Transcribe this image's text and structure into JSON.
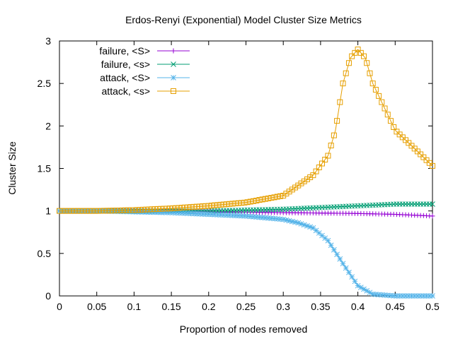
{
  "chart_data": {
    "type": "line",
    "title": "Erdos-Renyi (Exponential) Model Cluster Size Metrics",
    "xlabel": "Proportion of nodes removed",
    "ylabel": "Cluster Size",
    "xlim": [
      0,
      0.5
    ],
    "ylim": [
      0,
      3
    ],
    "xticks": [
      0,
      0.05,
      0.1,
      0.15,
      0.2,
      0.25,
      0.3,
      0.35,
      0.4,
      0.45,
      0.5
    ],
    "xtick_labels": [
      "0",
      "0.05",
      "0.1",
      "0.15",
      "0.2",
      "0.25",
      "0.3",
      "0.35",
      "0.4",
      "0.45",
      "0.5"
    ],
    "yticks": [
      0,
      0.5,
      1,
      1.5,
      2,
      2.5,
      3
    ],
    "ytick_labels": [
      "0",
      "0.5",
      "1",
      "1.5",
      "2",
      "2.5",
      "3"
    ],
    "grid": false,
    "legend_position": "top-left",
    "series": [
      {
        "name": "failure, <S>",
        "color": "#9400d3",
        "marker": "plus",
        "x": [
          0,
          0.05,
          0.1,
          0.15,
          0.2,
          0.25,
          0.3,
          0.35,
          0.4,
          0.45,
          0.5
        ],
        "y": [
          1.0,
          1.0,
          1.0,
          0.995,
          0.99,
          0.985,
          0.98,
          0.975,
          0.97,
          0.96,
          0.94
        ]
      },
      {
        "name": "failure, <s>",
        "color": "#009e73",
        "marker": "cross",
        "x": [
          0,
          0.05,
          0.1,
          0.15,
          0.2,
          0.25,
          0.3,
          0.35,
          0.4,
          0.45,
          0.5
        ],
        "y": [
          1.0,
          1.0,
          1.0,
          1.0,
          1.0,
          1.01,
          1.02,
          1.04,
          1.06,
          1.08,
          1.08
        ]
      },
      {
        "name": "attack, <S>",
        "color": "#56b4e9",
        "marker": "star",
        "x": [
          0,
          0.05,
          0.1,
          0.15,
          0.2,
          0.25,
          0.3,
          0.32,
          0.34,
          0.36,
          0.38,
          0.4,
          0.42,
          0.45,
          0.5
        ],
        "y": [
          1.0,
          1.0,
          0.99,
          0.98,
          0.96,
          0.94,
          0.9,
          0.86,
          0.8,
          0.65,
          0.38,
          0.12,
          0.02,
          0.0,
          0.0
        ]
      },
      {
        "name": "attack, <s>",
        "color": "#e69f00",
        "marker": "box",
        "x": [
          0,
          0.05,
          0.1,
          0.15,
          0.2,
          0.25,
          0.3,
          0.32,
          0.34,
          0.36,
          0.37,
          0.38,
          0.39,
          0.4,
          0.41,
          0.42,
          0.45,
          0.48,
          0.5
        ],
        "y": [
          1.0,
          1.0,
          1.01,
          1.03,
          1.06,
          1.1,
          1.18,
          1.3,
          1.42,
          1.65,
          1.95,
          2.5,
          2.8,
          2.9,
          2.8,
          2.5,
          1.95,
          1.7,
          1.53
        ]
      }
    ]
  }
}
